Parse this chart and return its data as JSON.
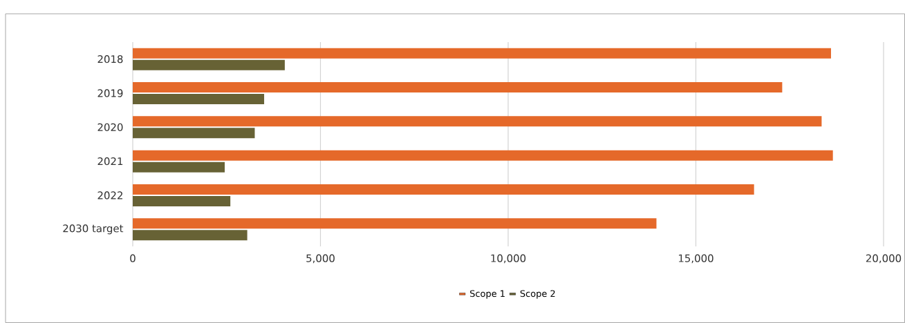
{
  "chart_data": {
    "type": "bar",
    "orientation": "horizontal",
    "categories": [
      "2018",
      "2019",
      "2020",
      "2021",
      "2022",
      "2030 target"
    ],
    "series": [
      {
        "name": "Scope 1",
        "color": "#e5692a",
        "values": [
          18600,
          17300,
          18350,
          18650,
          16550,
          13950
        ]
      },
      {
        "name": "Scope 2",
        "color": "#676235",
        "values": [
          4050,
          3500,
          3250,
          2450,
          2600,
          3050
        ]
      }
    ],
    "xlim": [
      0,
      20000
    ],
    "xticks": [
      0,
      {
        "value": 5000,
        "label": "5,000"
      },
      {
        "value": 10000,
        "label": "10,000"
      },
      {
        "value": 15000,
        "label": "15,000"
      },
      {
        "value": 20000,
        "label": "20,000"
      }
    ],
    "grid": "x",
    "legend": "bottom"
  }
}
